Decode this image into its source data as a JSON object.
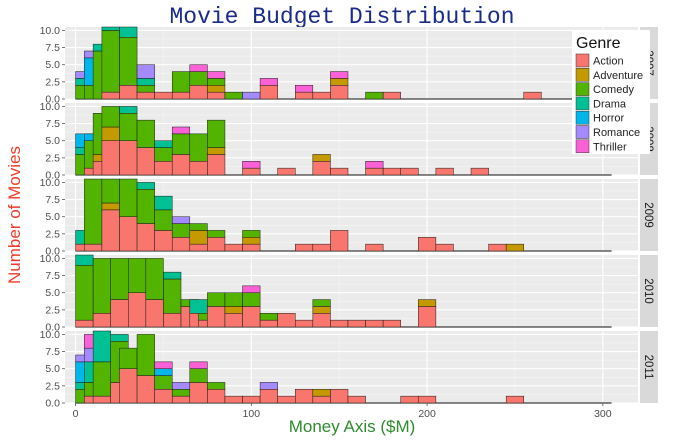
{
  "chart_data": {
    "type": "bar",
    "subtype": "stacked-histogram-faceted",
    "title": "Movie Budget Distribution",
    "xlabel": "Money Axis ($M)",
    "ylabel": "Number of Movies",
    "xlim": [
      -6,
      320
    ],
    "ylim": [
      0,
      10.5
    ],
    "x_ticks": [
      0,
      100,
      200,
      300
    ],
    "y_ticks": [
      "0.0",
      "2.5",
      "5.0",
      "7.5",
      "10.0"
    ],
    "bin_width": 10,
    "grid": true,
    "legend": {
      "title": "Genre",
      "placement": "top-right"
    },
    "genres": [
      "Action",
      "Adventure",
      "Comedy",
      "Drama",
      "Horror",
      "Romance",
      "Thriller"
    ],
    "colors": {
      "Action": "#F8766D",
      "Adventure": "#C49A00",
      "Comedy": "#53B400",
      "Drama": "#00C094",
      "Horror": "#00B6EB",
      "Romance": "#A58AFF",
      "Thriller": "#FB61D7"
    },
    "baseline_end": 305,
    "facets": [
      {
        "label": "2007",
        "bins": [
          {
            "x": 0,
            "stack": {
              "Comedy": 2,
              "Drama": 1,
              "Horror": 0,
              "Romance": 1
            }
          },
          {
            "x": 5,
            "stack": {
              "Comedy": 2,
              "Horror": 4,
              "Romance": 1
            }
          },
          {
            "x": 10,
            "stack": {
              "Comedy": 7,
              "Drama": 1
            }
          },
          {
            "x": 15,
            "stack": {
              "Action": 1,
              "Comedy": 9,
              "Drama": 2
            }
          },
          {
            "x": 25,
            "stack": {
              "Action": 2,
              "Comedy": 7,
              "Drama": 2,
              "Thriller": 1
            }
          },
          {
            "x": 35,
            "stack": {
              "Action": 1,
              "Comedy": 1,
              "Drama": 1,
              "Romance": 2
            }
          },
          {
            "x": 45,
            "stack": {
              "Action": 1
            }
          },
          {
            "x": 55,
            "stack": {
              "Action": 1,
              "Comedy": 3
            }
          },
          {
            "x": 65,
            "stack": {
              "Action": 2,
              "Comedy": 2,
              "Thriller": 1
            }
          },
          {
            "x": 75,
            "stack": {
              "Action": 1,
              "Adventure": 1,
              "Comedy": 1,
              "Thriller": 1
            }
          },
          {
            "x": 85,
            "stack": {
              "Action": 0,
              "Comedy": 1
            }
          },
          {
            "x": 95,
            "stack": {
              "Romance": 1
            }
          },
          {
            "x": 105,
            "stack": {
              "Action": 2,
              "Thriller": 1
            }
          },
          {
            "x": 125,
            "stack": {
              "Action": 1,
              "Thriller": 1
            }
          },
          {
            "x": 135,
            "stack": {
              "Action": 1
            }
          },
          {
            "x": 145,
            "stack": {
              "Action": 2,
              "Adventure": 1,
              "Thriller": 1
            }
          },
          {
            "x": 165,
            "stack": {
              "Comedy": 1
            }
          },
          {
            "x": 175,
            "stack": {
              "Action": 1
            }
          },
          {
            "x": 255,
            "stack": {
              "Action": 1
            }
          }
        ]
      },
      {
        "label": "2008",
        "bins": [
          {
            "x": 0,
            "stack": {
              "Comedy": 3,
              "Drama": 1,
              "Horror": 2
            }
          },
          {
            "x": 5,
            "stack": {
              "Action": 1,
              "Comedy": 4,
              "Horror": 1
            }
          },
          {
            "x": 10,
            "stack": {
              "Action": 2,
              "Adventure": 1,
              "Comedy": 6
            }
          },
          {
            "x": 15,
            "stack": {
              "Action": 5,
              "Adventure": 2,
              "Comedy": 3
            }
          },
          {
            "x": 25,
            "stack": {
              "Action": 5,
              "Comedy": 4,
              "Drama": 1
            }
          },
          {
            "x": 35,
            "stack": {
              "Action": 4,
              "Comedy": 4
            }
          },
          {
            "x": 45,
            "stack": {
              "Action": 2,
              "Comedy": 2,
              "Drama": 1
            }
          },
          {
            "x": 55,
            "stack": {
              "Action": 3,
              "Comedy": 3,
              "Thriller": 1
            }
          },
          {
            "x": 65,
            "stack": {
              "Action": 2,
              "Comedy": 4
            }
          },
          {
            "x": 75,
            "stack": {
              "Action": 3,
              "Adventure": 1,
              "Comedy": 4
            }
          },
          {
            "x": 85,
            "stack": {
              "Action": 0
            }
          },
          {
            "x": 95,
            "stack": {
              "Action": 1,
              "Thriller": 1
            }
          },
          {
            "x": 115,
            "stack": {
              "Action": 1
            }
          },
          {
            "x": 135,
            "stack": {
              "Action": 2,
              "Adventure": 1
            }
          },
          {
            "x": 145,
            "stack": {
              "Action": 1
            }
          },
          {
            "x": 165,
            "stack": {
              "Action": 1,
              "Thriller": 1
            }
          },
          {
            "x": 175,
            "stack": {
              "Action": 1
            }
          },
          {
            "x": 185,
            "stack": {
              "Action": 1
            }
          },
          {
            "x": 205,
            "stack": {
              "Action": 1
            }
          },
          {
            "x": 225,
            "stack": {
              "Action": 1
            }
          }
        ]
      },
      {
        "label": "2009",
        "bins": [
          {
            "x": 0,
            "stack": {
              "Action": 1,
              "Drama": 2
            }
          },
          {
            "x": 5,
            "stack": {
              "Action": 1,
              "Comedy": 10
            }
          },
          {
            "x": 15,
            "stack": {
              "Action": 6,
              "Adventure": 1,
              "Comedy": 4
            }
          },
          {
            "x": 25,
            "stack": {
              "Action": 5,
              "Comedy": 6
            }
          },
          {
            "x": 35,
            "stack": {
              "Action": 4,
              "Comedy": 5,
              "Drama": 1
            }
          },
          {
            "x": 45,
            "stack": {
              "Action": 3,
              "Comedy": 3,
              "Drama": 2
            }
          },
          {
            "x": 55,
            "stack": {
              "Action": 2,
              "Comedy": 2,
              "Romance": 1
            }
          },
          {
            "x": 65,
            "stack": {
              "Action": 1,
              "Adventure": 2,
              "Comedy": 1
            }
          },
          {
            "x": 75,
            "stack": {
              "Action": 2,
              "Comedy": 1
            }
          },
          {
            "x": 85,
            "stack": {
              "Action": 1
            }
          },
          {
            "x": 95,
            "stack": {
              "Action": 1,
              "Adventure": 1,
              "Comedy": 1
            }
          },
          {
            "x": 125,
            "stack": {
              "Action": 1
            }
          },
          {
            "x": 135,
            "stack": {
              "Action": 1
            }
          },
          {
            "x": 145,
            "stack": {
              "Action": 3
            }
          },
          {
            "x": 165,
            "stack": {
              "Action": 1
            }
          },
          {
            "x": 195,
            "stack": {
              "Action": 2
            }
          },
          {
            "x": 205,
            "stack": {
              "Action": 1
            }
          },
          {
            "x": 235,
            "stack": {
              "Action": 1
            }
          },
          {
            "x": 245,
            "stack": {
              "Adventure": 1
            }
          }
        ]
      },
      {
        "label": "2010",
        "bins": [
          {
            "x": 0,
            "stack": {
              "Action": 1,
              "Comedy": 8,
              "Drama": 2
            }
          },
          {
            "x": 10,
            "stack": {
              "Action": 2,
              "Comedy": 8
            }
          },
          {
            "x": 20,
            "stack": {
              "Action": 4,
              "Comedy": 6
            }
          },
          {
            "x": 30,
            "stack": {
              "Action": 5,
              "Comedy": 5
            }
          },
          {
            "x": 40,
            "stack": {
              "Action": 4,
              "Comedy": 6
            }
          },
          {
            "x": 50,
            "stack": {
              "Action": 2,
              "Comedy": 5,
              "Drama": 1
            }
          },
          {
            "x": 60,
            "stack": {
              "Action": 3,
              "Comedy": 1
            }
          },
          {
            "x": 65,
            "stack": {
              "Action": 2,
              "Drama": 2
            }
          },
          {
            "x": 70,
            "stack": {
              "Action": 1,
              "Comedy": 1
            }
          },
          {
            "x": 75,
            "stack": {
              "Action": 3,
              "Comedy": 2
            }
          },
          {
            "x": 85,
            "stack": {
              "Action": 2,
              "Adventure": 1,
              "Comedy": 2
            }
          },
          {
            "x": 95,
            "stack": {
              "Action": 3,
              "Comedy": 2,
              "Thriller": 1
            }
          },
          {
            "x": 105,
            "stack": {
              "Action": 1,
              "Comedy": 1
            }
          },
          {
            "x": 115,
            "stack": {
              "Action": 2,
              "Comedy": 0
            }
          },
          {
            "x": 125,
            "stack": {
              "Action": 1
            }
          },
          {
            "x": 135,
            "stack": {
              "Action": 2,
              "Adventure": 1,
              "Comedy": 1
            }
          },
          {
            "x": 145,
            "stack": {
              "Action": 1
            }
          },
          {
            "x": 155,
            "stack": {
              "Action": 1
            }
          },
          {
            "x": 165,
            "stack": {
              "Action": 1
            }
          },
          {
            "x": 175,
            "stack": {
              "Action": 1
            }
          },
          {
            "x": 195,
            "stack": {
              "Action": 3,
              "Adventure": 1
            }
          }
        ]
      },
      {
        "label": "2011",
        "bins": [
          {
            "x": 0,
            "stack": {
              "Comedy": 2,
              "Drama": 1,
              "Horror": 3,
              "Romance": 1
            }
          },
          {
            "x": 5,
            "stack": {
              "Action": 1,
              "Comedy": 2,
              "Drama": 3,
              "Romance": 2,
              "Thriller": 2
            }
          },
          {
            "x": 10,
            "stack": {
              "Action": 1,
              "Comedy": 5,
              "Drama": 5
            }
          },
          {
            "x": 20,
            "stack": {
              "Action": 3,
              "Comedy": 6,
              "Drama": 1
            }
          },
          {
            "x": 25,
            "stack": {
              "Action": 5,
              "Comedy": 3
            }
          },
          {
            "x": 35,
            "stack": {
              "Action": 4,
              "Comedy": 6
            }
          },
          {
            "x": 45,
            "stack": {
              "Action": 2,
              "Comedy": 2,
              "Horror": 1,
              "Thriller": 1
            }
          },
          {
            "x": 55,
            "stack": {
              "Action": 1,
              "Comedy": 1,
              "Romance": 1
            }
          },
          {
            "x": 65,
            "stack": {
              "Action": 3,
              "Comedy": 2,
              "Thriller": 1
            }
          },
          {
            "x": 75,
            "stack": {
              "Action": 2,
              "Comedy": 1
            }
          },
          {
            "x": 85,
            "stack": {
              "Action": 1
            }
          },
          {
            "x": 95,
            "stack": {
              "Action": 1
            }
          },
          {
            "x": 105,
            "stack": {
              "Action": 2,
              "Romance": 1
            }
          },
          {
            "x": 115,
            "stack": {
              "Action": 1
            }
          },
          {
            "x": 125,
            "stack": {
              "Action": 2
            }
          },
          {
            "x": 135,
            "stack": {
              "Action": 1,
              "Adventure": 1
            }
          },
          {
            "x": 145,
            "stack": {
              "Action": 2
            }
          },
          {
            "x": 155,
            "stack": {
              "Action": 1
            }
          },
          {
            "x": 185,
            "stack": {
              "Action": 1
            }
          },
          {
            "x": 195,
            "stack": {
              "Action": 1
            }
          },
          {
            "x": 245,
            "stack": {
              "Action": 1
            }
          }
        ]
      }
    ]
  }
}
